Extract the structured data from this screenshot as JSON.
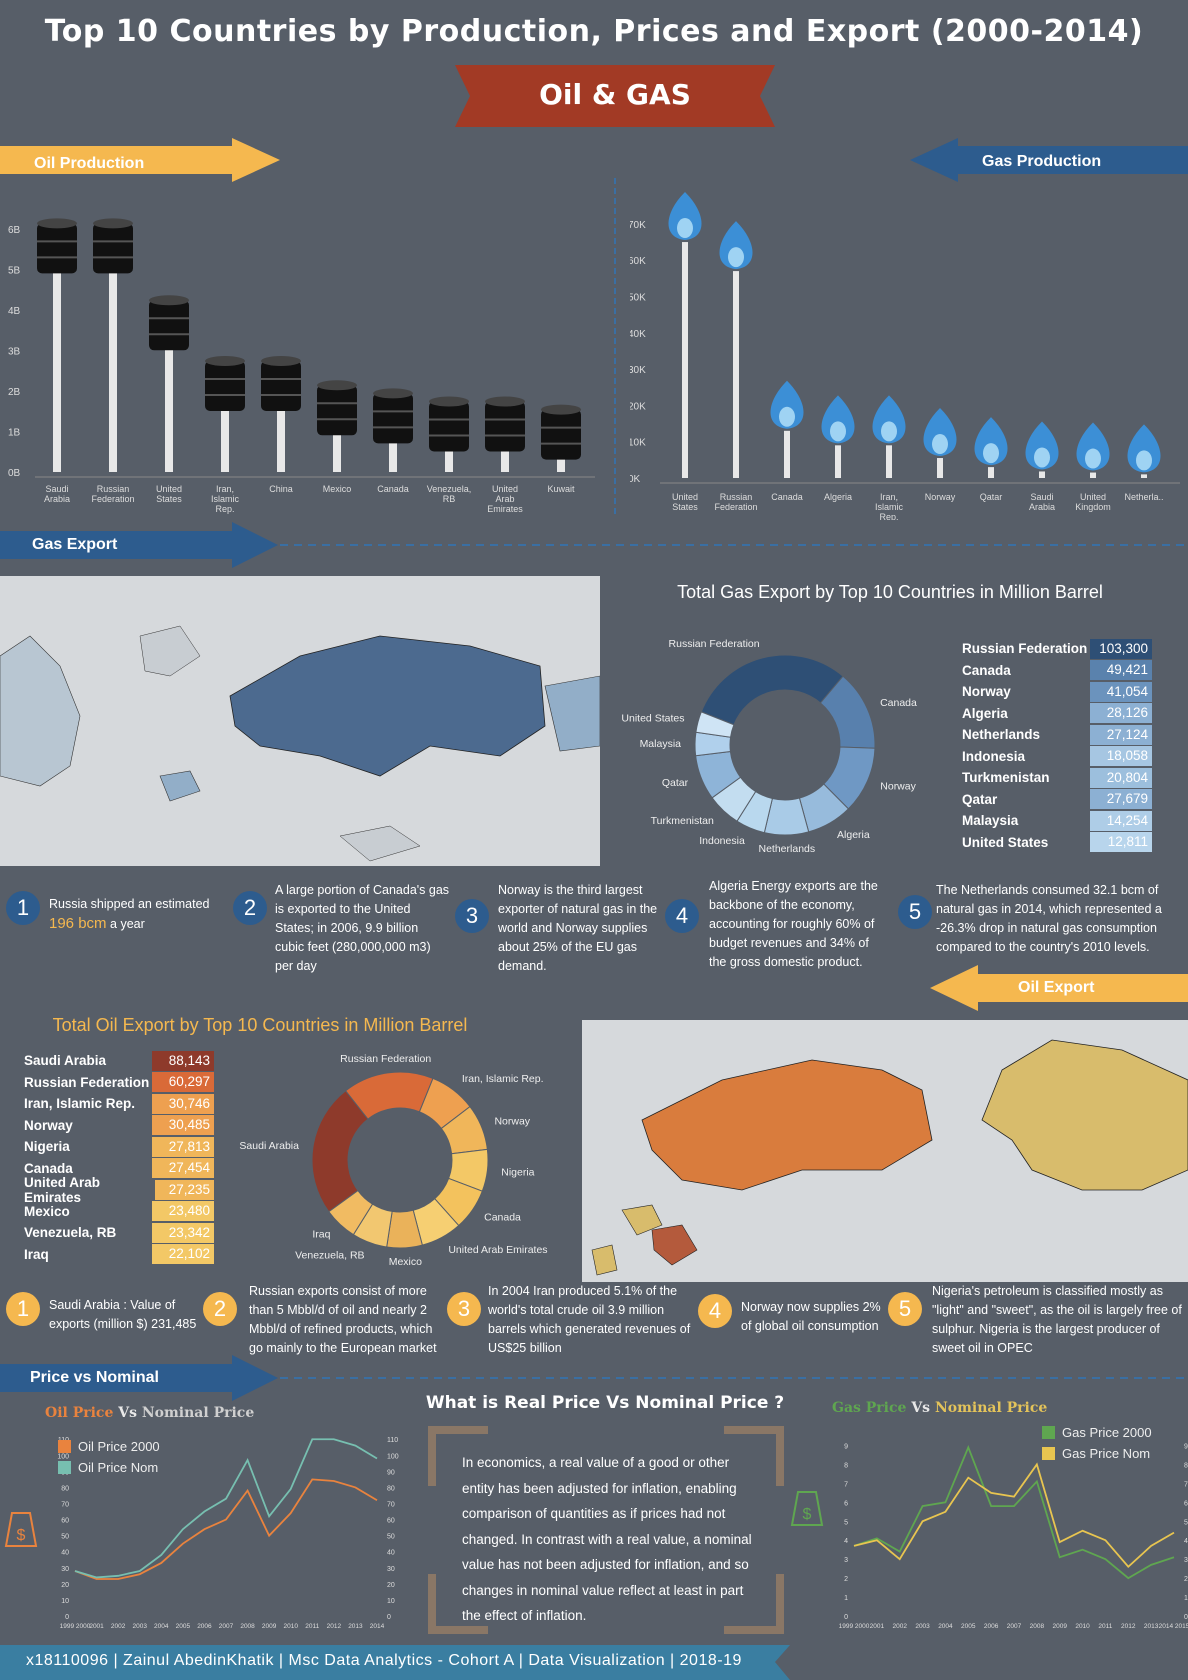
{
  "header": {
    "title": "Top 10 Countries by Production, Prices and Export (2000-2014)",
    "banner": "Oil & GAS"
  },
  "sections": {
    "oil_production": "Oil Production",
    "gas_production": "Gas Production",
    "gas_export": "Gas Export",
    "oil_export": "Oil Export",
    "price_vs_nominal": "Price vs Nominal"
  },
  "colors": {
    "background": "#575e68",
    "oil_accent": "#f5b84f",
    "gas_accent": "#2d5c8e",
    "banner_red": "#a23a25"
  },
  "chart_data": [
    {
      "id": "oil_production",
      "type": "bar",
      "categories": [
        "Saudi Arabia",
        "Russian Federation",
        "United States",
        "Iran, Islamic Rep.",
        "China",
        "Mexico",
        "Canada",
        "Venezuela, RB",
        "United Arab Emirates",
        "Kuwait"
      ],
      "values": [
        5.5,
        5.5,
        3.6,
        2.1,
        2.1,
        1.5,
        1.3,
        1.1,
        1.1,
        0.9
      ],
      "yticks": [
        "0B",
        "1B",
        "2B",
        "3B",
        "4B",
        "5B",
        "6B"
      ],
      "ylim": [
        0,
        6.3
      ]
    },
    {
      "id": "gas_production",
      "type": "bar",
      "categories": [
        "United States",
        "Russian Federation",
        "Canada",
        "Algeria",
        "Iran, Islamic Rep.",
        "Norway",
        "Qatar",
        "Saudi Arabia",
        "United Kingdom",
        "Netherla.."
      ],
      "values": [
        65000,
        57000,
        13000,
        9000,
        9000,
        5500,
        3000,
        1800,
        1500,
        1000
      ],
      "yticks": [
        "0K",
        "10K",
        "20K",
        "30K",
        "40K",
        "50K",
        "60K",
        "70K"
      ],
      "ylim": [
        0,
        73000
      ]
    },
    {
      "id": "gas_export",
      "type": "pie",
      "title": "Total Gas Export by Top 10 Countries in Million Barrel",
      "categories": [
        "Russian Federation",
        "Canada",
        "Norway",
        "Algeria",
        "Netherlands",
        "Indonesia",
        "Turkmenistan",
        "Qatar",
        "Malaysia",
        "United States"
      ],
      "values": [
        103300,
        49421,
        41054,
        28126,
        27124,
        18058,
        20804,
        27679,
        14254,
        12811
      ],
      "labels": [
        "103,300",
        "49,421",
        "41,054",
        "28,126",
        "27,124",
        "18,058",
        "20,804",
        "27,679",
        "14,254",
        "12,811"
      ]
    },
    {
      "id": "oil_export",
      "type": "pie",
      "title": "Total Oil Export by Top 10 Countries in Million Barrel",
      "categories": [
        "Saudi Arabia",
        "Russian Federation",
        "Iran, Islamic Rep.",
        "Norway",
        "Nigeria",
        "Canada",
        "United Arab Emirates",
        "Mexico",
        "Venezuela, RB",
        "Iraq"
      ],
      "values": [
        88143,
        60297,
        30746,
        30485,
        27813,
        27454,
        27235,
        23480,
        23342,
        22102
      ],
      "labels": [
        "88,143",
        "60,297",
        "30,746",
        "30,485",
        "27,813",
        "27,454",
        "27,235",
        "23,480",
        "23,342",
        "22,102"
      ]
    },
    {
      "id": "oil_price",
      "type": "line",
      "title_a": "Oil Price",
      "title_vs": "Vs",
      "title_b": "Nominal Price",
      "x": [
        "1999 2000",
        "2001",
        "2002",
        "2003",
        "2004",
        "2005",
        "2006",
        "2007",
        "2008",
        "2009",
        "2010",
        "2011",
        "2012",
        "2013",
        "2014"
      ],
      "series": [
        {
          "name": "Oil Price 2000",
          "values": [
            28,
            23,
            23,
            26,
            33,
            45,
            54,
            60,
            78,
            50,
            64,
            85,
            84,
            80,
            72
          ]
        },
        {
          "name": "Oil Price Nom",
          "values": [
            28,
            24,
            25,
            28,
            38,
            54,
            65,
            73,
            97,
            62,
            79,
            110,
            110,
            106,
            98
          ]
        }
      ],
      "yticks": [
        "0",
        "10",
        "20",
        "30",
        "40",
        "50",
        "60",
        "70",
        "80",
        "90",
        "100",
        "110"
      ],
      "ylim": [
        0,
        112
      ]
    },
    {
      "id": "gas_price",
      "type": "line",
      "title_a": "Gas Price",
      "title_vs": "Vs",
      "title_b": "Nominal Price",
      "x": [
        "1999 2000",
        "2001",
        "2002",
        "2003",
        "2004",
        "2005",
        "2006",
        "2007",
        "2008",
        "2009",
        "2010",
        "2011",
        "2012",
        "2013",
        "2014 2015"
      ],
      "series": [
        {
          "name": "Gas Price 2000",
          "values": [
            3.7,
            4.1,
            3.4,
            5.8,
            6.0,
            8.9,
            5.8,
            5.8,
            7.1,
            3.1,
            3.5,
            3.0,
            2.0,
            2.7,
            3.1
          ]
        },
        {
          "name": "Gas Price Nom",
          "values": [
            3.7,
            4.0,
            3.0,
            5.0,
            5.5,
            7.3,
            6.5,
            6.3,
            8.0,
            3.9,
            4.5,
            4.0,
            2.6,
            3.7,
            4.4
          ]
        }
      ],
      "yticks": [
        "0",
        "1",
        "2",
        "3",
        "4",
        "5",
        "6",
        "7",
        "8",
        "9"
      ],
      "ylim": [
        0,
        9.5
      ]
    }
  ],
  "gas_facts": [
    {
      "num": "1",
      "text_a": "Russia shipped an estimated ",
      "highlight": "196 bcm",
      "text_b": " a year"
    },
    {
      "num": "2",
      "text": "A large portion of Canada's gas is exported to the United States; in 2006, 9.9 billion cubic feet (280,000,000 m3) per day"
    },
    {
      "num": "3",
      "text": "Norway is the third largest exporter of natural gas in the world and Norway supplies about 25% of the EU gas demand."
    },
    {
      "num": "4",
      "text": "Algeria Energy exports are the backbone of the economy, accounting for roughly 60% of budget revenues and 34% of the gross domestic product."
    },
    {
      "num": "5",
      "text": "The Netherlands consumed 32.1 bcm of natural gas in 2014, which represented a -26.3% drop in natural gas consumption compared to the country's 2010 levels."
    }
  ],
  "oil_facts": [
    {
      "num": "1",
      "text": "Saudi Arabia : Value of exports (million $) 231,485"
    },
    {
      "num": "2",
      "text": "Russian exports consist of more than 5 Mbbl/d of oil and nearly 2 Mbbl/d of refined products, which go mainly to the European market"
    },
    {
      "num": "3",
      "text": "In 2004 Iran produced 5.1% of the world's total crude oil 3.9 million barrels which generated revenues of US$25 billion"
    },
    {
      "num": "4",
      "text": "Norway now supplies 2% of global oil consumption"
    },
    {
      "num": "5",
      "text": "Nigeria's petroleum is classified mostly as \"light\" and \"sweet\", as the oil is largely free of sulphur. Nigeria is the largest producer of sweet oil in OPEC"
    }
  ],
  "real_vs_nominal": {
    "heading": "What is Real Price Vs Nominal Price ?",
    "body": "In economics, a real value of a good or other entity has been adjusted for inflation, enabling comparison of quantities as if prices had not changed. In contrast with a real value, a nominal value has not been adjusted for inflation, and so changes in nominal value reflect at least in part the effect of inflation."
  },
  "footer": "x18110096 | Zainul AbedinKhatik | Msc Data Analytics - Cohort A | Data Visualization | 2018-19"
}
